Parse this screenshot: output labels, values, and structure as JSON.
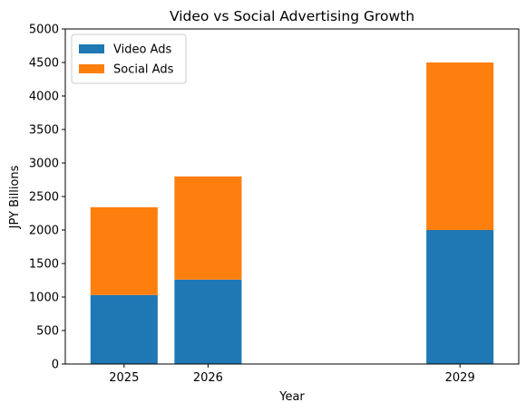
{
  "chart_data": {
    "type": "bar",
    "stacked": true,
    "title": "Video vs Social Advertising Growth",
    "xlabel": "Year",
    "ylabel": "JPY Billions",
    "x": [
      2025,
      2026,
      2029
    ],
    "xlim": [
      2024.3,
      2029.7
    ],
    "bar_width": 0.8,
    "ylim": [
      0,
      5000
    ],
    "yticks": [
      0,
      500,
      1000,
      1500,
      2000,
      2500,
      3000,
      3500,
      4000,
      4500,
      5000
    ],
    "grid": false,
    "legend_position": "top-left",
    "series": [
      {
        "name": "Video Ads",
        "color": "#1f77b4",
        "values": [
          1030,
          1260,
          2000
        ]
      },
      {
        "name": "Social Ads",
        "color": "#ff7f0e",
        "values": [
          1310,
          1540,
          2500
        ]
      }
    ]
  }
}
